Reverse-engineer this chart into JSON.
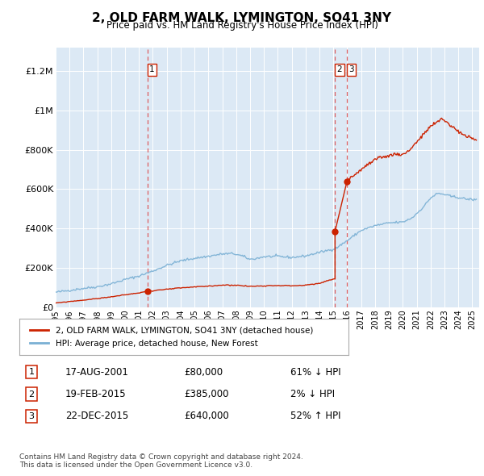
{
  "title": "2, OLD FARM WALK, LYMINGTON, SO41 3NY",
  "subtitle": "Price paid vs. HM Land Registry's House Price Index (HPI)",
  "bg_color": "#dce9f5",
  "ylabel_ticks": [
    "£0",
    "£200K",
    "£400K",
    "£600K",
    "£800K",
    "£1M",
    "£1.2M"
  ],
  "ytick_values": [
    0,
    200000,
    400000,
    600000,
    800000,
    1000000,
    1200000
  ],
  "ylim": [
    0,
    1320000
  ],
  "xlim_start": 1995.0,
  "xlim_end": 2025.5,
  "hpi_color": "#7ab0d4",
  "price_color": "#cc2200",
  "dashed_color": "#dd4444",
  "legend_label_price": "2, OLD FARM WALK, LYMINGTON, SO41 3NY (detached house)",
  "legend_label_hpi": "HPI: Average price, detached house, New Forest",
  "transactions": [
    {
      "label": "1",
      "date": 2001.63,
      "price": 80000,
      "pct": "61% ↓ HPI",
      "date_str": "17-AUG-2001",
      "price_str": "£80,000"
    },
    {
      "label": "2",
      "date": 2015.12,
      "price": 385000,
      "pct": "2% ↓ HPI",
      "date_str": "19-FEB-2015",
      "price_str": "£385,000"
    },
    {
      "label": "3",
      "date": 2015.98,
      "price": 640000,
      "pct": "52% ↑ HPI",
      "date_str": "22-DEC-2015",
      "price_str": "£640,000"
    }
  ],
  "footer": "Contains HM Land Registry data © Crown copyright and database right 2024.\nThis data is licensed under the Open Government Licence v3.0."
}
